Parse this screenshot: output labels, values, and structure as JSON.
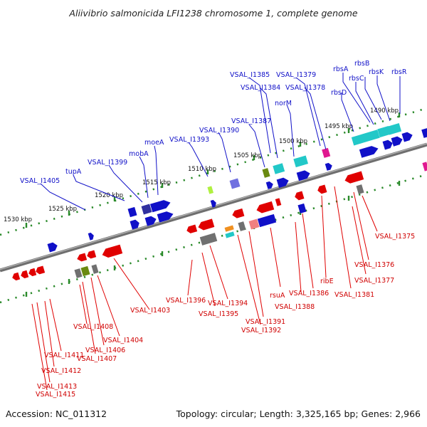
{
  "title": "Aliivibrio salmonicida LFI1238 chromosome 1, complete genome",
  "footer": {
    "accession": "Accession: NC_011312",
    "summary": "Topology: circular; Length: 3,325,165 bp; Genes: 2,966"
  },
  "colors": {
    "forward": "#1010c8",
    "reverse": "#d00000",
    "backbone": "#7a7a7a",
    "scale": "#2a8a2a"
  },
  "ticks": [
    "1490 kbp",
    "1495 kbp",
    "1500 kbp",
    "1505 kbp",
    "1510 kbp",
    "1515 kbp",
    "1520 kbp",
    "1525 kbp",
    "1530 kbp"
  ],
  "forward_labels": [
    "rbsB",
    "rbsA",
    "rbsK",
    "rbsR",
    "rbsC",
    "rbsD",
    "VSAL_I1385",
    "VSAL_I1379",
    "VSAL_I1384",
    "VSAL_I1378",
    "norM",
    "VSAL_I1387",
    "VSAL_I1390",
    "VSAL_I1393",
    "moeA",
    "mobA",
    "VSAL_I1399",
    "tupA",
    "VSAL_I1405"
  ],
  "reverse_labels": [
    "VSAL_I1375",
    "VSAL_I1376",
    "VSAL_I1377",
    "VSAL_I1381",
    "ribE",
    "VSAL_I1386",
    "VSAL_I1388",
    "rsuA",
    "VSAL_I1391",
    "VSAL_I1392",
    "VSAL_I1394",
    "VSAL_I1395",
    "VSAL_I1396",
    "VSAL_I1403",
    "VSAL_I1404",
    "VSAL_I1406",
    "VSAL_I1407",
    "VSAL_I1408",
    "VSAL_I1411",
    "VSAL_I1412",
    "VSAL_I1413",
    "VSAL_I1415"
  ]
}
